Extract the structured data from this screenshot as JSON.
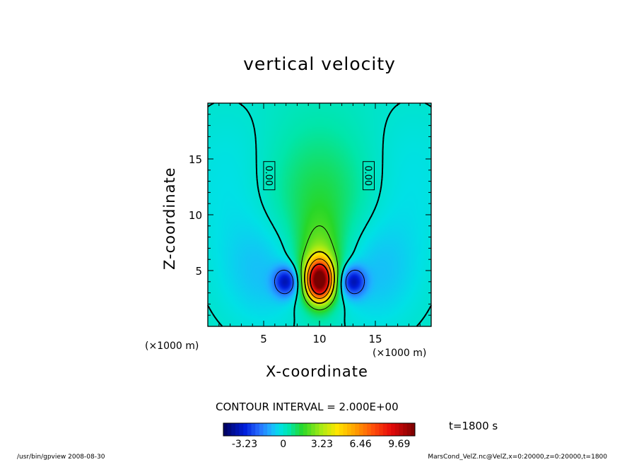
{
  "chart_data": {
    "type": "heatmap",
    "title": "vertical velocity",
    "xlabel": "X-coordinate",
    "ylabel": "Z-coordinate",
    "xunit": "(×1000 m)",
    "yunit": "(×1000 m)",
    "xlim": [
      0,
      20
    ],
    "ylim": [
      0,
      20
    ],
    "xticks": [
      5,
      10,
      15
    ],
    "yticks": [
      5,
      10,
      15
    ],
    "contour_interval_text": "CONTOUR INTERVAL = 2.000E+00",
    "contour_labels": [
      {
        "text": "0.00",
        "x": 5.5,
        "z": 13.5
      },
      {
        "text": "0.00",
        "x": 14.4,
        "z": 13.5
      }
    ],
    "field_features": {
      "updraft_max": {
        "x": 10.0,
        "z": 4.1,
        "value": 10.5
      },
      "downdraft_left": {
        "x": 7.0,
        "z": 4.0,
        "value": -3.5
      },
      "downdraft_right": {
        "x": 13.0,
        "z": 4.0,
        "value": -3.5
      }
    },
    "colorbar": {
      "ticks": [
        "-3.23",
        "0",
        "3.23",
        "6.46",
        "9.69"
      ],
      "values": [
        -3.23,
        0,
        3.23,
        6.46,
        9.69
      ],
      "min": -5.0,
      "max": 11.0
    },
    "time_label": "t=1800 s"
  },
  "footer": {
    "left": "/usr/bin/gpview   2008-08-30",
    "right": "MarsCond_VelZ.nc@VelZ,x=0:20000,z=0:20000,t=1800"
  },
  "colors": {
    "background": "#ffffff",
    "axes": "#000000"
  }
}
